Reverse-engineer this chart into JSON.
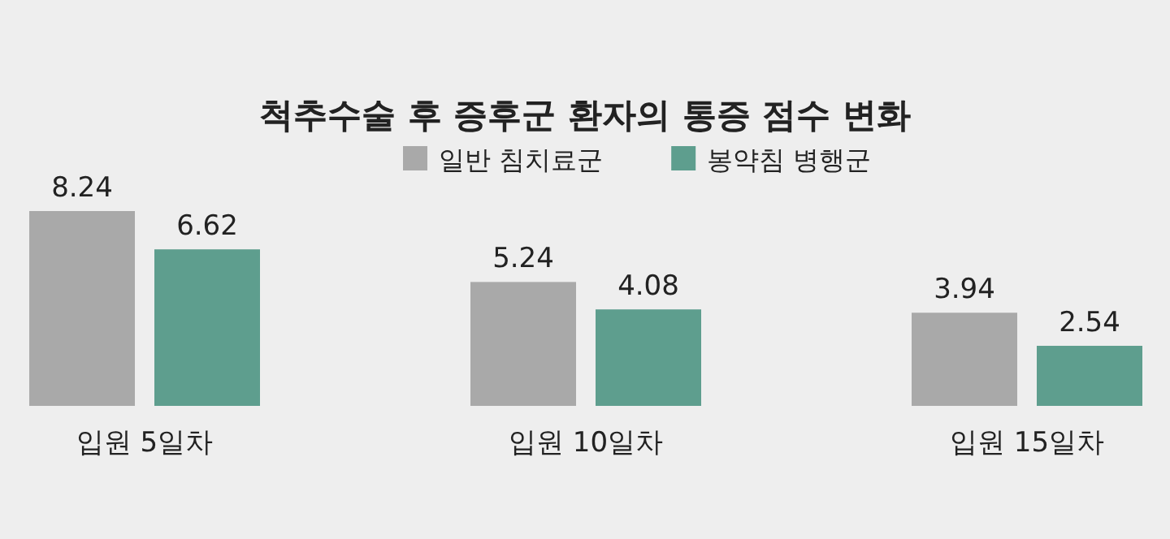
{
  "chart_data": {
    "type": "bar",
    "title": "척추수술 후 증후군 환자의 통증 점수 변화",
    "categories": [
      "입원 5일차",
      "입원 10일차",
      "입원 15일차"
    ],
    "series": [
      {
        "name": "일반 침치료군",
        "color": "#a9a9a9",
        "values": [
          8.24,
          5.24,
          3.94
        ]
      },
      {
        "name": "봉약침 병행군",
        "color": "#5e9e8e",
        "values": [
          6.62,
          4.08,
          2.54
        ]
      }
    ],
    "data_labels": true,
    "legend": "top"
  }
}
